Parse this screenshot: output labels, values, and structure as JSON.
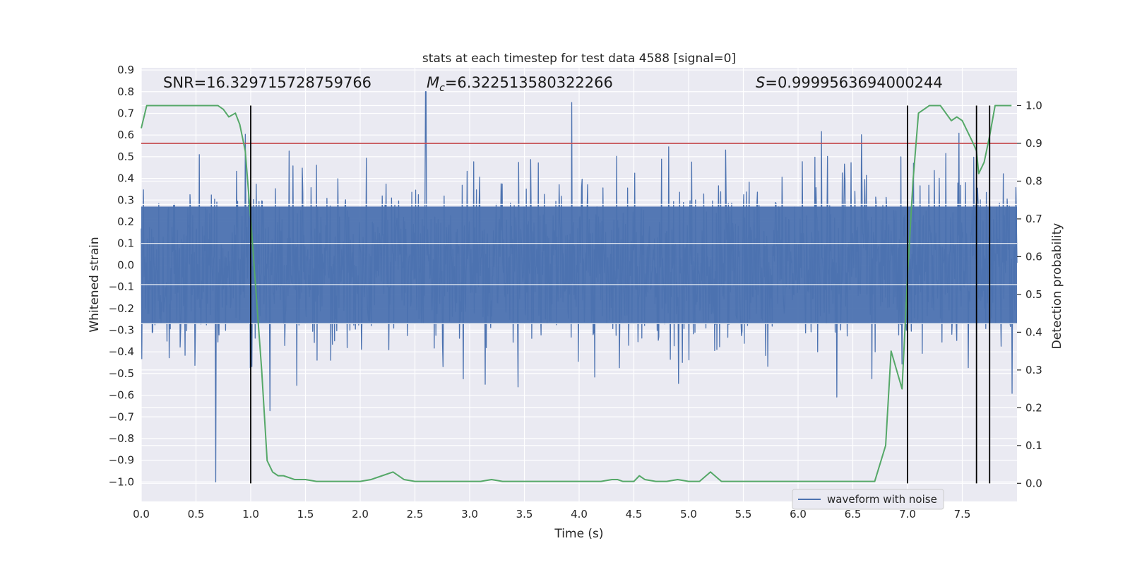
{
  "chart_data": {
    "type": "line",
    "title": "stats at each timestep for test data 4588 [signal=0]",
    "xlabel": "Time (s)",
    "ylabel": "Whitened strain",
    "y2label": "Detection probability",
    "xlim": [
      0.0,
      8.0
    ],
    "ylim": [
      -1.09,
      0.91
    ],
    "y2lim": [
      -0.048,
      1.1
    ],
    "xticks": [
      "0.0",
      "0.5",
      "1.0",
      "1.5",
      "2.0",
      "2.5",
      "3.0",
      "3.5",
      "4.0",
      "4.5",
      "5.0",
      "5.5",
      "6.0",
      "6.5",
      "7.0",
      "7.5"
    ],
    "yticks": [
      "0.9",
      "0.8",
      "0.7",
      "0.6",
      "0.5",
      "0.4",
      "0.3",
      "0.2",
      "0.1",
      "0.0",
      "−0.1",
      "−0.2",
      "−0.3",
      "−0.4",
      "−0.5",
      "−0.6",
      "−0.7",
      "−0.8",
      "−0.9",
      "−1.0"
    ],
    "y2ticks": [
      "0.0",
      "0.1",
      "0.2",
      "0.3",
      "0.4",
      "0.5",
      "0.6",
      "0.7",
      "0.8",
      "0.9",
      "1.0"
    ],
    "annotations": {
      "snr": "SNR=16.329715728759766",
      "mc_symbol": "M",
      "mc_sub": "c",
      "mc_value": "=6.322513580322266",
      "s_symbol": "S",
      "s_value": "=0.9999563694000244"
    },
    "threshold": 0.9,
    "vlines": [
      1.0,
      7.0,
      7.63,
      7.75
    ],
    "series": [
      {
        "name": "waveform with noise",
        "axis": "left",
        "color": "#4c72b0",
        "envelope": {
          "x": [
            0.0,
            1.0,
            1.0,
            7.0,
            7.0,
            8.0
          ],
          "noise_sigma": 0.17,
          "samples": 1600,
          "peak_min": -1.0,
          "peak_max": 0.8,
          "peak_max_x": 2.6,
          "peak_min_x": 0.68
        }
      },
      {
        "name": "detection probability",
        "axis": "right",
        "color": "#55a868",
        "x": [
          0.0,
          0.05,
          0.1,
          0.2,
          0.3,
          0.4,
          0.5,
          0.6,
          0.7,
          0.75,
          0.8,
          0.86,
          0.9,
          0.95,
          1.0,
          1.05,
          1.1,
          1.15,
          1.2,
          1.25,
          1.3,
          1.4,
          1.5,
          1.6,
          1.7,
          1.8,
          1.9,
          2.0,
          2.1,
          2.2,
          2.3,
          2.4,
          2.5,
          2.6,
          2.7,
          2.8,
          2.9,
          3.0,
          3.1,
          3.2,
          3.3,
          3.4,
          3.5,
          3.6,
          3.7,
          3.8,
          3.9,
          4.0,
          4.1,
          4.2,
          4.3,
          4.35,
          4.4,
          4.5,
          4.55,
          4.6,
          4.7,
          4.8,
          4.9,
          5.0,
          5.1,
          5.2,
          5.3,
          5.4,
          5.5,
          5.6,
          5.7,
          5.8,
          5.9,
          6.0,
          6.1,
          6.2,
          6.3,
          6.4,
          6.5,
          6.6,
          6.7,
          6.8,
          6.85,
          6.9,
          6.95,
          7.0,
          7.05,
          7.1,
          7.15,
          7.2,
          7.25,
          7.3,
          7.35,
          7.4,
          7.45,
          7.5,
          7.55,
          7.6,
          7.63,
          7.65,
          7.7,
          7.75,
          7.8,
          7.85,
          7.9,
          7.95
        ],
        "y": [
          0.94,
          1.0,
          1.0,
          1.0,
          1.0,
          1.0,
          1.0,
          1.0,
          1.0,
          0.99,
          0.97,
          0.98,
          0.95,
          0.88,
          0.7,
          0.5,
          0.3,
          0.06,
          0.03,
          0.02,
          0.02,
          0.01,
          0.01,
          0.005,
          0.005,
          0.005,
          0.005,
          0.005,
          0.01,
          0.02,
          0.03,
          0.01,
          0.005,
          0.005,
          0.005,
          0.005,
          0.005,
          0.005,
          0.005,
          0.01,
          0.005,
          0.005,
          0.005,
          0.005,
          0.005,
          0.005,
          0.005,
          0.005,
          0.005,
          0.005,
          0.01,
          0.01,
          0.005,
          0.005,
          0.02,
          0.01,
          0.005,
          0.005,
          0.01,
          0.005,
          0.005,
          0.03,
          0.005,
          0.005,
          0.005,
          0.005,
          0.005,
          0.005,
          0.005,
          0.005,
          0.005,
          0.005,
          0.005,
          0.005,
          0.005,
          0.005,
          0.005,
          0.1,
          0.35,
          0.3,
          0.25,
          0.55,
          0.8,
          0.98,
          0.99,
          1.0,
          1.0,
          1.0,
          0.98,
          0.96,
          0.97,
          0.96,
          0.93,
          0.9,
          0.88,
          0.82,
          0.85,
          0.92,
          1.0,
          1.0,
          1.0,
          1.0
        ]
      }
    ],
    "legend": {
      "placement": "bottom-right",
      "entries": [
        "waveform with noise"
      ]
    }
  }
}
